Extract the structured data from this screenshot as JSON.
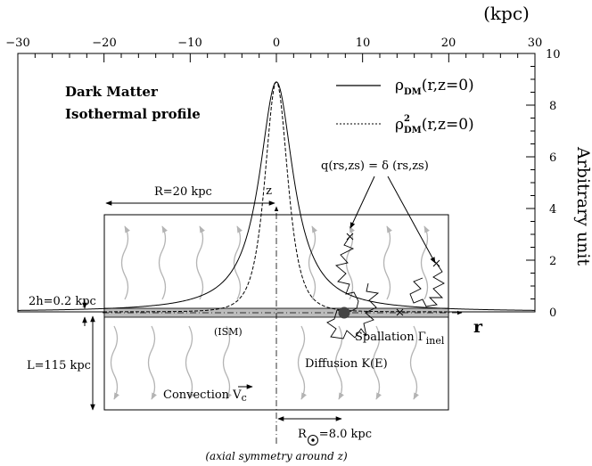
{
  "axes": {
    "top_unit": "(kpc)",
    "right_unit": "Arbitrary unit",
    "top_ticks": [
      "−30",
      "−20",
      "−10",
      "0",
      "10",
      "20",
      "30"
    ],
    "top_range": [
      -30,
      30
    ],
    "right_ticks": [
      "0",
      "2",
      "4",
      "6",
      "8",
      "10"
    ],
    "right_range": [
      0,
      10
    ]
  },
  "title": {
    "line1": "Dark Matter",
    "line2": "Isothermal profile"
  },
  "legend": {
    "solid_label": "ρ",
    "solid_sub": "DM",
    "solid_args": "(r,z=0)",
    "dotted_label": "ρ",
    "dotted_sup": "2",
    "dotted_sub": "DM",
    "dotted_args": "(r,z=0)"
  },
  "labels": {
    "z_axis": "z",
    "r_axis": "r",
    "source_term": "q(rs,zs) = δ (rs,zs)",
    "radius": "R=20 kpc",
    "disk_thickness": "2h=0.2 kpc",
    "halo_height": "L=115 kpc",
    "ism": "(ISM)",
    "diffusion": "Diffusion K(E)",
    "spallation": "Spallation Γ",
    "spallation_sub": "inel",
    "convection": "Convection V",
    "convection_sub": "c",
    "sun_prefix": "R",
    "sun_value": "=8.0 kpc",
    "caption": "(axial symmetry around z)"
  },
  "colors": {
    "disk_fill": "#bcbcbc",
    "wind_arrows": "#b4b4b4",
    "sun_marker": "#444444",
    "ink": "#000000"
  },
  "profiles": {
    "peak_value": 8.9,
    "core_radius_kpc": 2.4,
    "extent_kpc": 30
  }
}
